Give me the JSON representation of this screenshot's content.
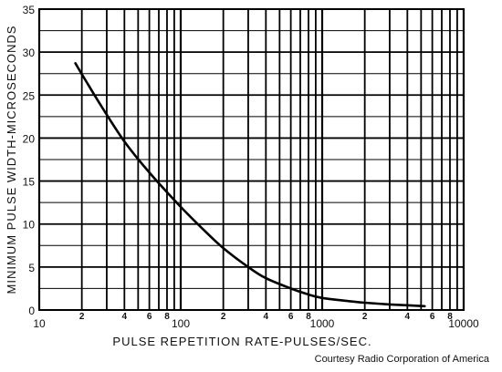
{
  "chart_data": {
    "type": "line",
    "xlabel": "PULSE REPETITION RATE-PULSES/SEC.",
    "ylabel": "MINIMUM PULSE WIDTH-MICROSECONDS",
    "x_scale": "log",
    "xlim": [
      10,
      10000
    ],
    "ylim": [
      0,
      35
    ],
    "grid": true,
    "x_tick_labels": [
      {
        "value": 10,
        "label": "10",
        "major": true
      },
      {
        "value": 20,
        "label": "2",
        "major": false
      },
      {
        "value": 40,
        "label": "4",
        "major": false
      },
      {
        "value": 60,
        "label": "6",
        "major": false
      },
      {
        "value": 80,
        "label": "8",
        "major": false
      },
      {
        "value": 100,
        "label": "100",
        "major": true
      },
      {
        "value": 200,
        "label": "2",
        "major": false
      },
      {
        "value": 400,
        "label": "4",
        "major": false
      },
      {
        "value": 600,
        "label": "6",
        "major": false
      },
      {
        "value": 800,
        "label": "8",
        "major": false
      },
      {
        "value": 1000,
        "label": "1000",
        "major": true
      },
      {
        "value": 2000,
        "label": "2",
        "major": false
      },
      {
        "value": 4000,
        "label": "4",
        "major": false
      },
      {
        "value": 6000,
        "label": "6",
        "major": false
      },
      {
        "value": 8000,
        "label": "8",
        "major": false
      },
      {
        "value": 10000,
        "label": "10000",
        "major": true
      }
    ],
    "x_grid_values": [
      10,
      20,
      30,
      40,
      50,
      60,
      70,
      80,
      90,
      100,
      200,
      300,
      400,
      500,
      600,
      700,
      800,
      900,
      1000,
      2000,
      3000,
      4000,
      5000,
      6000,
      7000,
      8000,
      9000,
      10000
    ],
    "y_ticks": [
      0,
      5,
      10,
      15,
      20,
      25,
      30,
      35
    ],
    "y_minor_grid": [
      2.5,
      7.5,
      12.5,
      17.5,
      22.5,
      27.5,
      32.5
    ],
    "series": [
      {
        "x": [
          18,
          22,
          28,
          40,
          60,
          100,
          150,
          200,
          300,
          400,
          600,
          800,
          1000,
          1500,
          2000,
          3000,
          4000,
          5300
        ],
        "y": [
          28.7,
          26.3,
          23.5,
          19.6,
          16.0,
          12.0,
          9.1,
          7.2,
          5.0,
          3.7,
          2.5,
          1.8,
          1.4,
          1.05,
          0.85,
          0.65,
          0.55,
          0.45
        ]
      }
    ]
  },
  "credit": "Courtesy Radio Corporation of America"
}
